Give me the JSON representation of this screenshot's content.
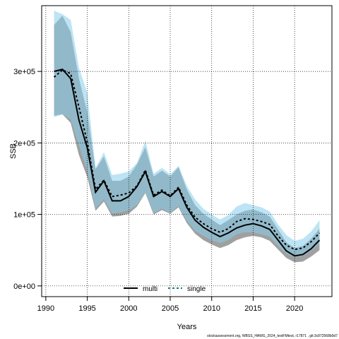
{
  "chart_data": {
    "type": "line",
    "xlabel": "Years",
    "ylabel": "SSB",
    "xlim": [
      1989.5,
      2024.5
    ],
    "ylim": [
      -15000,
      392000
    ],
    "grid": true,
    "legend_placement": "bottom",
    "x_ticks": [
      1990,
      1995,
      2000,
      2005,
      2010,
      2015,
      2020
    ],
    "y_ticks": [
      0,
      100000,
      200000,
      300000
    ],
    "y_tick_labels": [
      "0e+00",
      "1e+05",
      "2e+05",
      "3e+05"
    ],
    "years": [
      1991,
      1992,
      1993,
      1994,
      1995,
      1996,
      1997,
      1998,
      1999,
      2000,
      2001,
      2002,
      2003,
      2004,
      2005,
      2006,
      2007,
      2008,
      2009,
      2010,
      2011,
      2012,
      2013,
      2014,
      2015,
      2016,
      2017,
      2018,
      2019,
      2020,
      2021,
      2022,
      2023
    ],
    "series": [
      {
        "name": "multi",
        "color": "#000000",
        "dash": "solid",
        "band_color": "#808080",
        "values": [
          300000,
          303000,
          290000,
          232000,
          193000,
          131000,
          147000,
          119000,
          119000,
          125000,
          139000,
          160000,
          125000,
          132000,
          125000,
          136000,
          110000,
          92000,
          82000,
          75000,
          69000,
          74000,
          81000,
          85000,
          87000,
          84000,
          79000,
          64000,
          49000,
          42000,
          44000,
          52000,
          64000
        ],
        "lower": [
          238000,
          240000,
          228000,
          183000,
          152000,
          105000,
          118000,
          97000,
          98000,
          101000,
          111000,
          130000,
          100000,
          106000,
          101000,
          110000,
          88000,
          73000,
          64000,
          58000,
          53000,
          57000,
          64000,
          68000,
          70000,
          68000,
          63000,
          51000,
          39000,
          33000,
          34000,
          41000,
          50000
        ],
        "upper": [
          365000,
          378000,
          355000,
          290000,
          243000,
          163000,
          181000,
          147000,
          147000,
          153000,
          170000,
          194000,
          153000,
          161000,
          153000,
          166000,
          135000,
          113000,
          101000,
          93000,
          85000,
          92000,
          100000,
          105000,
          107000,
          103000,
          97000,
          79000,
          61000,
          53000,
          56000,
          66000,
          80000
        ]
      },
      {
        "name": "single",
        "color": "#1a7a8f",
        "dash": "dashed",
        "band_color": "#87ceeb",
        "values": [
          292000,
          302000,
          297000,
          250000,
          201000,
          135000,
          148000,
          125000,
          127000,
          130000,
          140000,
          162000,
          127000,
          134000,
          126000,
          138000,
          113000,
          96000,
          87000,
          80000,
          75000,
          80000,
          90000,
          94000,
          93000,
          90000,
          86000,
          70000,
          57000,
          51000,
          53000,
          62000,
          74000
        ],
        "lower": [
          236000,
          240000,
          233000,
          196000,
          160000,
          108000,
          121000,
          101000,
          103000,
          106000,
          113000,
          131000,
          102000,
          108000,
          102000,
          112000,
          91000,
          77000,
          70000,
          64000,
          60000,
          64000,
          72000,
          75000,
          75000,
          72000,
          69000,
          56000,
          45000,
          40000,
          42000,
          49000,
          59000
        ],
        "upper": [
          385000,
          380000,
          372000,
          305000,
          270000,
          165000,
          187000,
          155000,
          157000,
          160000,
          172000,
          203000,
          157000,
          165000,
          156000,
          168000,
          140000,
          121000,
          108000,
          100000,
          93000,
          99000,
          111000,
          116000,
          113000,
          110000,
          104000,
          86000,
          71000,
          63000,
          66000,
          76000,
          92000
        ]
      }
    ]
  },
  "caption": "stockassessment.org, WBSS_HAWG_2024_testFMtest, r17871 , git:3c872568b0d7"
}
